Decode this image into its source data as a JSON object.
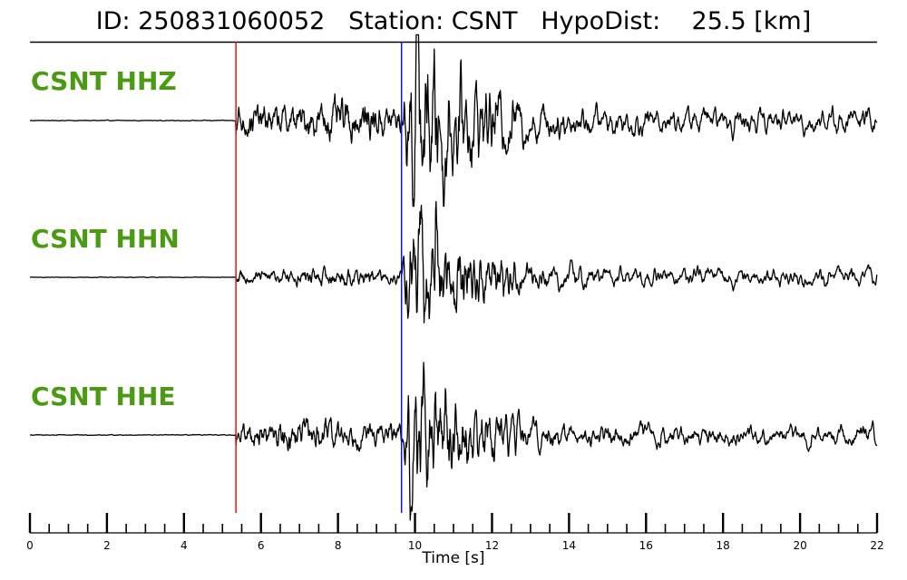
{
  "header": {
    "event_id_label": "ID:",
    "event_id": "250831060052",
    "station_label": "Station:",
    "station": "CSNT",
    "hypodist_label": "HypoDist:",
    "hypodist_value": "25.5",
    "hypodist_unit": "[km]"
  },
  "chart_data": {
    "type": "line",
    "xlabel": "Time [s]",
    "xlim": [
      0,
      22
    ],
    "x_ticks_major": [
      0,
      2,
      4,
      6,
      8,
      10,
      12,
      14,
      16,
      18,
      20,
      22
    ],
    "x_tick_labels": [
      "0",
      "2",
      "4",
      "6",
      "8",
      "10",
      "12",
      "14",
      "16",
      "18",
      "20",
      "22"
    ],
    "x_minor_tick_step": 0.5,
    "grid": false,
    "picks": [
      {
        "phase": "P",
        "time": 5.35,
        "color": "#e8130f"
      },
      {
        "phase": "S",
        "time": 9.65,
        "color": "#1010e8"
      }
    ],
    "series": [
      {
        "name": "CSNT HHZ",
        "color": "#000000",
        "label_color": "#4a9a12",
        "envelope": {
          "pre": 0.003,
          "p_coda": 0.16,
          "s_peak": 1.0,
          "decay_to": 0.13
        },
        "peaks": [
          {
            "t": 10.05,
            "amp": 1.0
          },
          {
            "t": 10.75,
            "amp": -0.94
          }
        ]
      },
      {
        "name": "CSNT HHN",
        "color": "#000000",
        "label_color": "#4a9a12",
        "envelope": {
          "pre": 0.003,
          "p_coda": 0.08,
          "s_peak": 0.85,
          "decay_to": 0.1
        },
        "peaks": [
          {
            "t": 10.55,
            "amp": 0.9
          },
          {
            "t": 10.25,
            "amp": -0.62
          }
        ]
      },
      {
        "name": "CSNT HHE",
        "color": "#000000",
        "label_color": "#4a9a12",
        "envelope": {
          "pre": 0.003,
          "p_coda": 0.12,
          "s_peak": 0.7,
          "decay_to": 0.1
        },
        "peaks": [
          {
            "t": 9.9,
            "amp": -0.95
          },
          {
            "t": 10.8,
            "amp": 0.62
          }
        ]
      }
    ]
  }
}
